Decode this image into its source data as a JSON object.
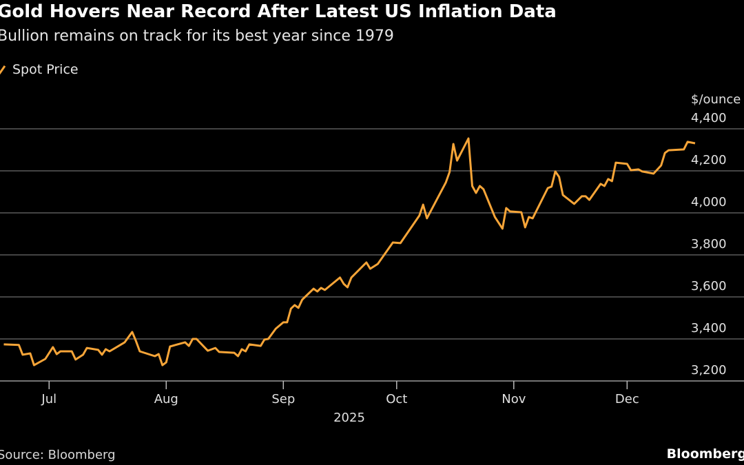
{
  "title": "Gold Hovers Near Record After Latest US Inflation Data",
  "subtitle": "Bullion remains on track for its best year since 1979",
  "source": "Source: Bloomberg",
  "brand": "Bloomberg",
  "chart_data": {
    "type": "line",
    "unit_label": "$/ounce",
    "year_label": "2025",
    "line_color": "#f7a538",
    "legend_placement": "top-left",
    "grid": true,
    "ylim": [
      3200,
      4400
    ],
    "y_ticks": [
      3200,
      3400,
      3600,
      3800,
      4000,
      4200,
      4400
    ],
    "y_tick_labels": [
      "3,200",
      "3,400",
      "3,600",
      "3,800",
      "4,000",
      "4,200",
      "4,400"
    ],
    "x_ticks": [
      "2025-07-01",
      "2025-08-01",
      "2025-09-01",
      "2025-10-01",
      "2025-11-01",
      "2025-12-01"
    ],
    "x_tick_labels": [
      "Jul",
      "Aug",
      "Sep",
      "Oct",
      "Nov",
      "Dec"
    ],
    "xlim": [
      "2025-06-18",
      "2025-12-21"
    ],
    "series": [
      {
        "name": "Spot Price",
        "points": [
          [
            "2025-06-19",
            3374
          ],
          [
            "2025-06-23",
            3371
          ],
          [
            "2025-06-24",
            3325
          ],
          [
            "2025-06-26",
            3331
          ],
          [
            "2025-06-27",
            3275
          ],
          [
            "2025-06-30",
            3305
          ],
          [
            "2025-07-02",
            3361
          ],
          [
            "2025-07-03",
            3328
          ],
          [
            "2025-07-04",
            3341
          ],
          [
            "2025-07-07",
            3341
          ],
          [
            "2025-07-08",
            3302
          ],
          [
            "2025-07-10",
            3325
          ],
          [
            "2025-07-11",
            3357
          ],
          [
            "2025-07-14",
            3348
          ],
          [
            "2025-07-15",
            3325
          ],
          [
            "2025-07-16",
            3351
          ],
          [
            "2025-07-17",
            3341
          ],
          [
            "2025-07-21",
            3384
          ],
          [
            "2025-07-23",
            3433
          ],
          [
            "2025-07-24",
            3390
          ],
          [
            "2025-07-25",
            3341
          ],
          [
            "2025-07-29",
            3318
          ],
          [
            "2025-07-30",
            3328
          ],
          [
            "2025-07-31",
            3275
          ],
          [
            "2025-08-01",
            3289
          ],
          [
            "2025-08-02",
            3364
          ],
          [
            "2025-08-06",
            3384
          ],
          [
            "2025-08-07",
            3367
          ],
          [
            "2025-08-08",
            3400
          ],
          [
            "2025-08-09",
            3400
          ],
          [
            "2025-08-12",
            3344
          ],
          [
            "2025-08-14",
            3357
          ],
          [
            "2025-08-15",
            3338
          ],
          [
            "2025-08-19",
            3334
          ],
          [
            "2025-08-20",
            3318
          ],
          [
            "2025-08-21",
            3351
          ],
          [
            "2025-08-22",
            3341
          ],
          [
            "2025-08-23",
            3374
          ],
          [
            "2025-08-26",
            3367
          ],
          [
            "2025-08-27",
            3397
          ],
          [
            "2025-08-28",
            3400
          ],
          [
            "2025-08-30",
            3449
          ],
          [
            "2025-09-01",
            3479
          ],
          [
            "2025-09-02",
            3479
          ],
          [
            "2025-09-03",
            3544
          ],
          [
            "2025-09-04",
            3561
          ],
          [
            "2025-09-05",
            3548
          ],
          [
            "2025-09-06",
            3587
          ],
          [
            "2025-09-09",
            3639
          ],
          [
            "2025-09-10",
            3626
          ],
          [
            "2025-09-11",
            3643
          ],
          [
            "2025-09-12",
            3633
          ],
          [
            "2025-09-16",
            3692
          ],
          [
            "2025-09-17",
            3662
          ],
          [
            "2025-09-18",
            3646
          ],
          [
            "2025-09-19",
            3692
          ],
          [
            "2025-09-23",
            3764
          ],
          [
            "2025-09-24",
            3734
          ],
          [
            "2025-09-26",
            3757
          ],
          [
            "2025-09-30",
            3859
          ],
          [
            "2025-10-02",
            3856
          ],
          [
            "2025-10-07",
            3987
          ],
          [
            "2025-10-08",
            4039
          ],
          [
            "2025-10-09",
            3974
          ],
          [
            "2025-10-14",
            4144
          ],
          [
            "2025-10-15",
            4194
          ],
          [
            "2025-10-16",
            4328
          ],
          [
            "2025-10-17",
            4249
          ],
          [
            "2025-10-20",
            4354
          ],
          [
            "2025-10-21",
            4128
          ],
          [
            "2025-10-22",
            4095
          ],
          [
            "2025-10-23",
            4128
          ],
          [
            "2025-10-24",
            4112
          ],
          [
            "2025-10-27",
            3980
          ],
          [
            "2025-10-29",
            3925
          ],
          [
            "2025-10-30",
            4023
          ],
          [
            "2025-10-31",
            4007
          ],
          [
            "2025-11-03",
            4003
          ],
          [
            "2025-11-04",
            3931
          ],
          [
            "2025-11-05",
            3980
          ],
          [
            "2025-11-06",
            3974
          ],
          [
            "2025-11-10",
            4118
          ],
          [
            "2025-11-11",
            4125
          ],
          [
            "2025-11-12",
            4197
          ],
          [
            "2025-11-13",
            4171
          ],
          [
            "2025-11-14",
            4085
          ],
          [
            "2025-11-17",
            4043
          ],
          [
            "2025-11-19",
            4079
          ],
          [
            "2025-11-20",
            4079
          ],
          [
            "2025-11-21",
            4062
          ],
          [
            "2025-11-24",
            4138
          ],
          [
            "2025-11-25",
            4128
          ],
          [
            "2025-11-26",
            4161
          ],
          [
            "2025-11-27",
            4151
          ],
          [
            "2025-11-28",
            4239
          ],
          [
            "2025-12-01",
            4233
          ],
          [
            "2025-12-02",
            4203
          ],
          [
            "2025-12-04",
            4207
          ],
          [
            "2025-12-05",
            4197
          ],
          [
            "2025-12-08",
            4187
          ],
          [
            "2025-12-10",
            4226
          ],
          [
            "2025-12-11",
            4285
          ],
          [
            "2025-12-12",
            4298
          ],
          [
            "2025-12-16",
            4302
          ],
          [
            "2025-12-17",
            4338
          ],
          [
            "2025-12-19",
            4331
          ]
        ]
      }
    ]
  }
}
